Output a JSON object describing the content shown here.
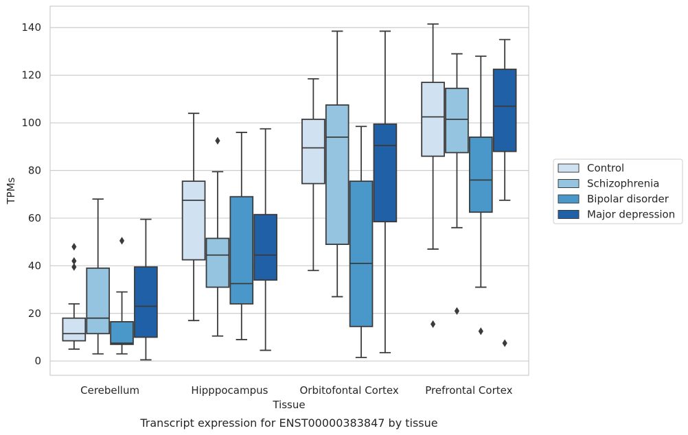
{
  "chart_data": {
    "type": "box",
    "xlabel": "Tissue",
    "ylabel": "TPMs",
    "caption": "Transcript expression for ENST00000383847 by tissue",
    "categories": [
      "Cerebellum",
      "Hipppocampus",
      "Orbitofontal Cortex",
      "Prefrontal Cortex"
    ],
    "ylim": [
      -6,
      149
    ],
    "yticks": [
      0,
      20,
      40,
      60,
      80,
      100,
      120,
      140
    ],
    "grid": "horizontal",
    "legend_position": "right",
    "series": [
      {
        "name": "Control",
        "color": "#d0e1f2",
        "boxes": [
          {
            "whisker_low": 5,
            "q1": 8.5,
            "median": 11.5,
            "q3": 18,
            "whisker_high": 24,
            "outliers": [
              39.5,
              42,
              48
            ]
          },
          {
            "whisker_low": 17,
            "q1": 42.5,
            "median": 67.5,
            "q3": 75.5,
            "whisker_high": 104,
            "outliers": []
          },
          {
            "whisker_low": 38,
            "q1": 74.5,
            "median": 89.5,
            "q3": 101.5,
            "whisker_high": 118.5,
            "outliers": []
          },
          {
            "whisker_low": 47,
            "q1": 86,
            "median": 102.5,
            "q3": 117,
            "whisker_high": 141.5,
            "outliers": [
              15.5
            ]
          }
        ]
      },
      {
        "name": "Schizophrenia",
        "color": "#94c4df",
        "boxes": [
          {
            "whisker_low": 3,
            "q1": 11.5,
            "median": 18,
            "q3": 39,
            "whisker_high": 68,
            "outliers": []
          },
          {
            "whisker_low": 10.5,
            "q1": 31,
            "median": 44.5,
            "q3": 51.5,
            "whisker_high": 79.5,
            "outliers": [
              92.5
            ]
          },
          {
            "whisker_low": 27,
            "q1": 49,
            "median": 94,
            "q3": 107.5,
            "whisker_high": 138.5,
            "outliers": []
          },
          {
            "whisker_low": 56,
            "q1": 87.5,
            "median": 101.5,
            "q3": 114.5,
            "whisker_high": 129,
            "outliers": [
              21
            ]
          }
        ]
      },
      {
        "name": "Bipolar disorder",
        "color": "#4a98c9",
        "boxes": [
          {
            "whisker_low": 3,
            "q1": 7,
            "median": 7.5,
            "q3": 16.5,
            "whisker_high": 29,
            "outliers": [
              50.5
            ]
          },
          {
            "whisker_low": 9,
            "q1": 24,
            "median": 32.5,
            "q3": 69,
            "whisker_high": 96,
            "outliers": []
          },
          {
            "whisker_low": 1.5,
            "q1": 14.5,
            "median": 41,
            "q3": 75.5,
            "whisker_high": 98.5,
            "outliers": []
          },
          {
            "whisker_low": 31,
            "q1": 62.5,
            "median": 76,
            "q3": 94,
            "whisker_high": 128,
            "outliers": [
              12.5
            ]
          }
        ]
      },
      {
        "name": "Major depression",
        "color": "#2060a7",
        "boxes": [
          {
            "whisker_low": 0.5,
            "q1": 10,
            "median": 23,
            "q3": 39.5,
            "whisker_high": 59.5,
            "outliers": []
          },
          {
            "whisker_low": 4.5,
            "q1": 34,
            "median": 44.5,
            "q3": 61.5,
            "whisker_high": 97.5,
            "outliers": []
          },
          {
            "whisker_low": 3.5,
            "q1": 58.5,
            "median": 90.5,
            "q3": 99.5,
            "whisker_high": 138.5,
            "outliers": []
          },
          {
            "whisker_low": 67.5,
            "q1": 88,
            "median": 107,
            "q3": 122.5,
            "whisker_high": 135,
            "outliers": [
              7.5
            ]
          }
        ]
      }
    ]
  }
}
